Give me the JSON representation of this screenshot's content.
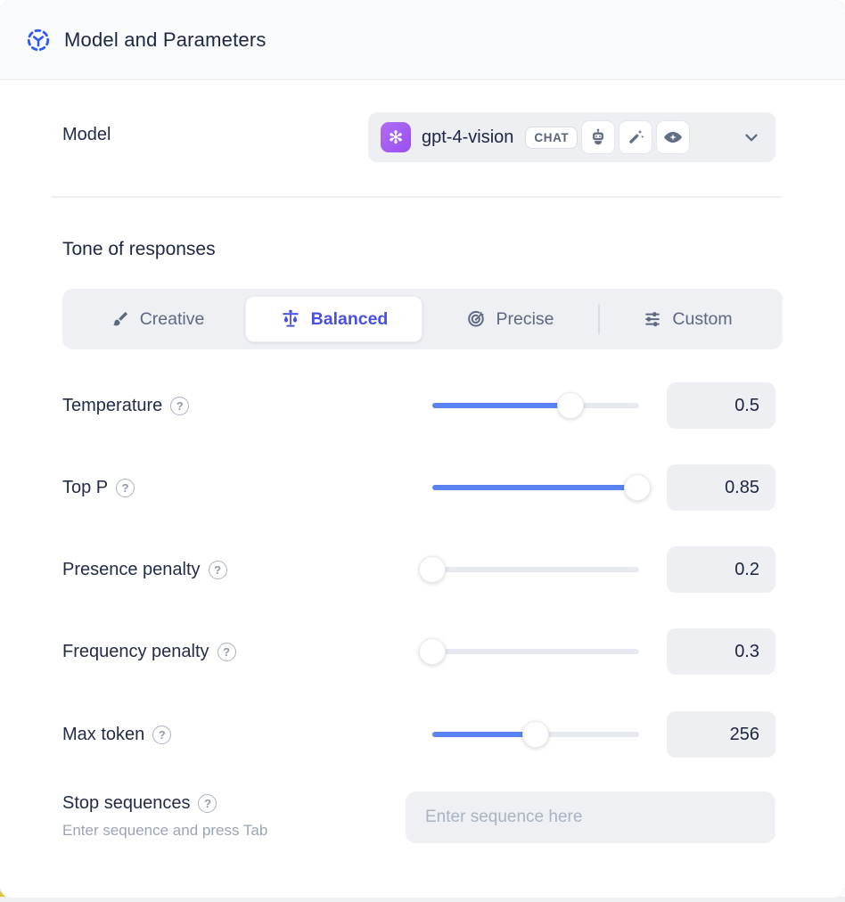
{
  "header": {
    "title": "Model and Parameters",
    "icon": "model-icon"
  },
  "model": {
    "label": "Model",
    "selected_model": "gpt-4-vision",
    "provider_icon": "openai-logo-icon",
    "type_badge": "CHAT",
    "capability_icons": [
      "robot-icon",
      "magic-wand-icon",
      "vision-eye-icon"
    ],
    "chevron_icon": "chevron-down-icon"
  },
  "tone": {
    "title": "Tone of responses",
    "options": [
      {
        "label": "Creative",
        "icon": "paintbrush-icon",
        "selected": false
      },
      {
        "label": "Balanced",
        "icon": "balance-scale-icon",
        "selected": true
      },
      {
        "label": "Precise",
        "icon": "target-icon",
        "selected": false
      },
      {
        "label": "Custom",
        "icon": "sliders-icon",
        "selected": false
      }
    ]
  },
  "params": [
    {
      "label": "Temperature",
      "value": "0.5",
      "fill_pct": 67
    },
    {
      "label": "Top P",
      "value": "0.85",
      "fill_pct": 99
    },
    {
      "label": "Presence penalty",
      "value": "0.2",
      "fill_pct": 0
    },
    {
      "label": "Frequency penalty",
      "value": "0.3",
      "fill_pct": 0
    },
    {
      "label": "Max token",
      "value": "256",
      "fill_pct": 50
    }
  ],
  "stop_sequences": {
    "label": "Stop sequences",
    "hint": "Enter sequence and press Tab",
    "placeholder": "Enter sequence here"
  },
  "glyphs": {
    "help": "?",
    "openai": "✻"
  },
  "colors": {
    "accent_blue": "#3056f5",
    "selected_indigo": "#4750e2",
    "slider_blue": "#5b82f3",
    "openai_purple": "#9a4ff0",
    "header_bg": "#f8fafc",
    "field_bg": "#edeff3",
    "text_navy": "#222c46",
    "text_slate": "#5d6880",
    "bottom_accent_yellow": "#e2c23a"
  }
}
